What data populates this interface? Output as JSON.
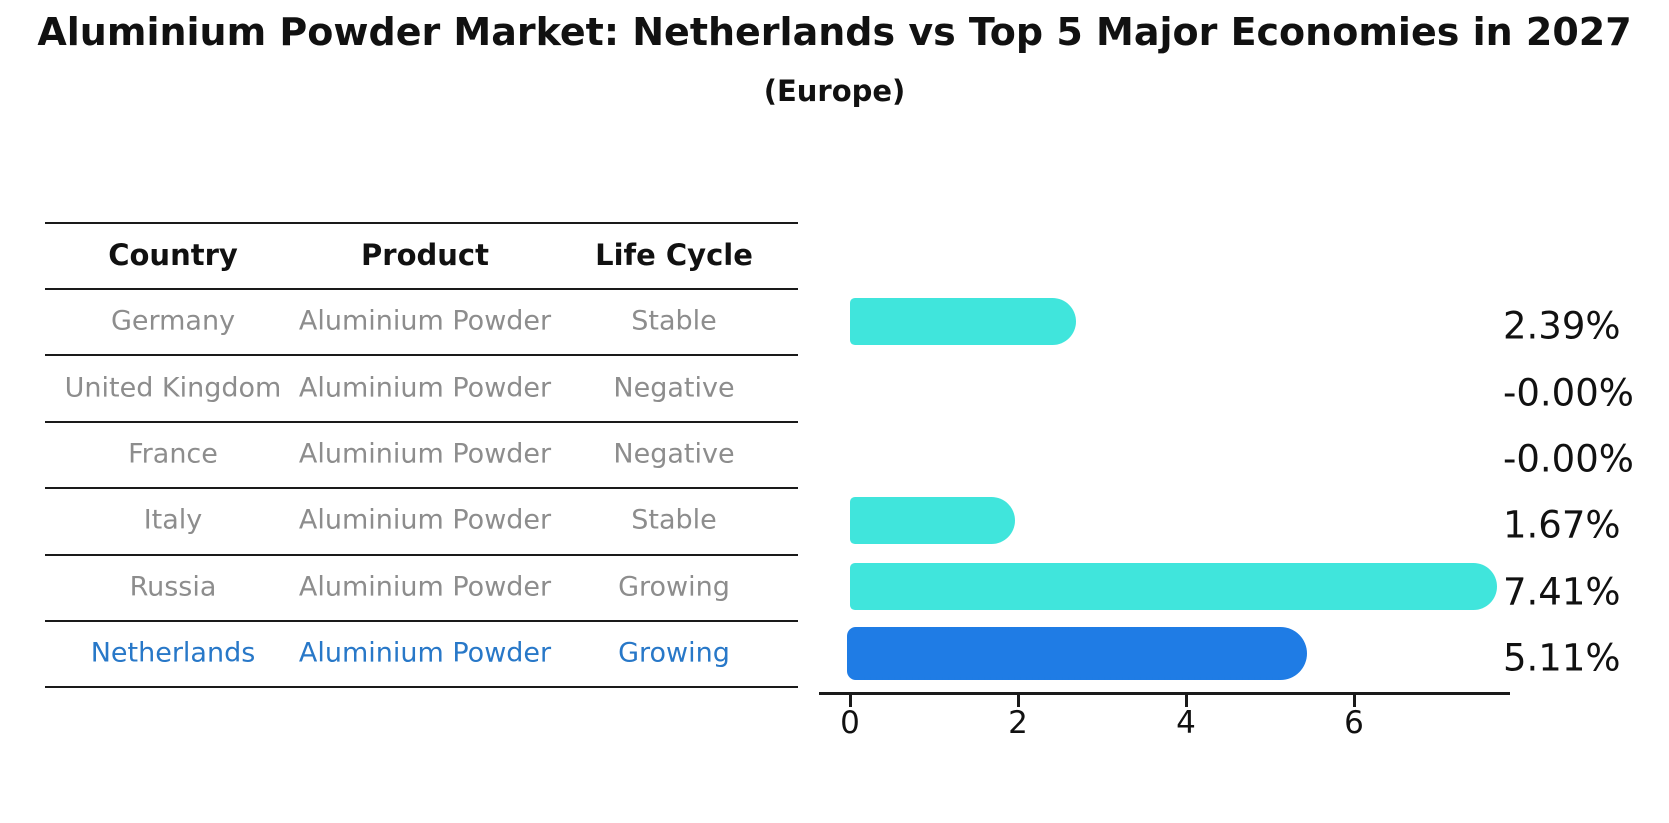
{
  "chart_data": {
    "type": "bar",
    "orientation": "horizontal",
    "title": "Aluminium Powder Market: Netherlands vs Top 5 Major Economies in 2027",
    "subtitle": "(Europe)",
    "categories": [
      "Germany",
      "United Kingdom",
      "France",
      "Italy",
      "Russia",
      "Netherlands"
    ],
    "values": [
      2.39,
      0,
      0,
      1.67,
      7.41,
      5.11
    ],
    "value_labels": [
      "2.39%",
      "-0.00%",
      "-0.00%",
      "1.67%",
      "7.41%",
      "5.11%"
    ],
    "x_ticks": [
      "0",
      "2",
      "4",
      "6"
    ],
    "x_tick_values": [
      0,
      2,
      4,
      6
    ],
    "xlim": [
      0,
      7.85
    ],
    "grid": false,
    "legend": false,
    "bar_color": "#40E5DC",
    "highlight_index": 5,
    "highlight_color": "#1F7CE5",
    "highlight_border_style": "dotted"
  },
  "table": {
    "columns": [
      "Country",
      "Product",
      "Life Cycle"
    ],
    "rows": [
      {
        "country": "Germany",
        "product": "Aluminium Powder",
        "life_cycle": "Stable",
        "highlighted": false
      },
      {
        "country": "United Kingdom",
        "product": "Aluminium Powder",
        "life_cycle": "Negative",
        "highlighted": false
      },
      {
        "country": "France",
        "product": "Aluminium Powder",
        "life_cycle": "Negative",
        "highlighted": false
      },
      {
        "country": "Italy",
        "product": "Aluminium Powder",
        "life_cycle": "Stable",
        "highlighted": false
      },
      {
        "country": "Russia",
        "product": "Aluminium Powder",
        "life_cycle": "Growing",
        "highlighted": false
      },
      {
        "country": "Netherlands",
        "product": "Aluminium Powder",
        "life_cycle": "Growing",
        "highlighted": true
      }
    ]
  },
  "colors": {
    "text": "#111111",
    "muted_text": "#8D8D8D",
    "highlight_text": "#2878C8",
    "line": "#1A1A1A",
    "background": "#FFFFFF"
  }
}
